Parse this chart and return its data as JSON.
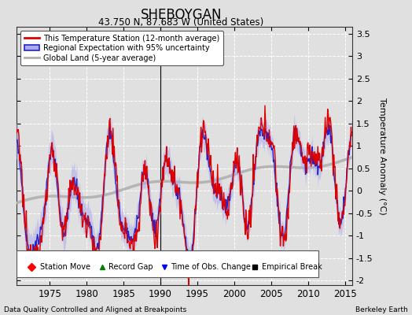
{
  "title": "SHEBOYGAN",
  "subtitle": "43.750 N, 87.683 W (United States)",
  "ylabel": "Temperature Anomaly (°C)",
  "xlabel_bottom": "Data Quality Controlled and Aligned at Breakpoints",
  "xlabel_right": "Berkeley Earth",
  "ylim": [
    -2.1,
    3.65
  ],
  "xlim": [
    1970.5,
    2016
  ],
  "yticks": [
    -2,
    -1.5,
    -1,
    -0.5,
    0,
    0.5,
    1,
    1.5,
    2,
    2.5,
    3,
    3.5
  ],
  "xticks": [
    1975,
    1980,
    1985,
    1990,
    1995,
    2000,
    2005,
    2010,
    2015
  ],
  "bg_color": "#e0e0e0",
  "plot_bg_color": "#e0e0e0",
  "grid_color": "#ffffff",
  "station_color": "#dd0000",
  "regional_color": "#2222cc",
  "regional_fill_color": "#aaaaee",
  "global_color": "#b0b0b0",
  "legend_labels": [
    "This Temperature Station (12-month average)",
    "Regional Expectation with 95% uncertainty",
    "Global Land (5-year average)"
  ],
  "marker_year_empirical": 1991.8,
  "seed": 12345
}
